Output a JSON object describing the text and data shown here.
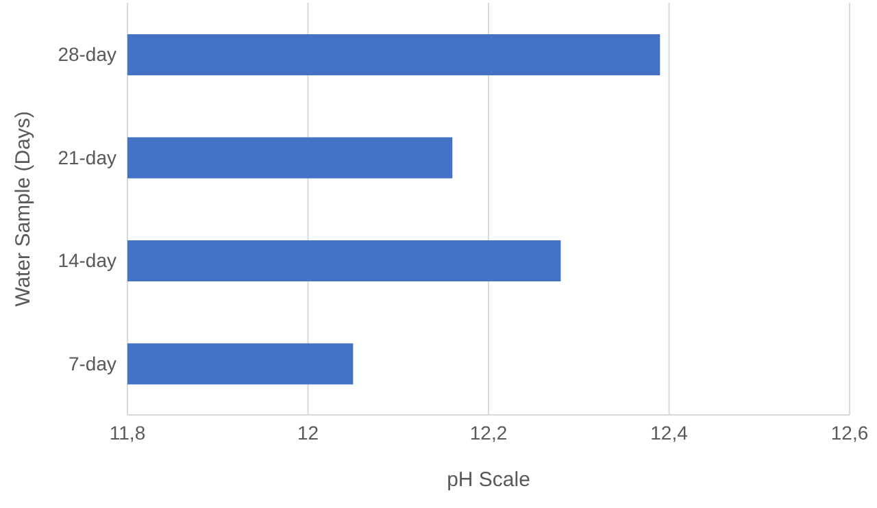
{
  "chart_data": {
    "type": "bar",
    "orientation": "horizontal",
    "xlabel": "pH Scale",
    "ylabel": "Water Sample (Days)",
    "categories": [
      "28-day",
      "21-day",
      "14-day",
      "7-day"
    ],
    "values": [
      12.39,
      12.16,
      12.28,
      12.05
    ],
    "color": "#4472c4",
    "xlim": [
      11.8,
      12.6
    ],
    "xticks": [
      {
        "value": 11.8,
        "label": "11,8"
      },
      {
        "value": 12,
        "label": "12"
      },
      {
        "value": 12.2,
        "label": "12,2"
      },
      {
        "value": 12.4,
        "label": "12,4"
      },
      {
        "value": 12.6,
        "label": "12,6"
      }
    ],
    "grid": "x"
  }
}
